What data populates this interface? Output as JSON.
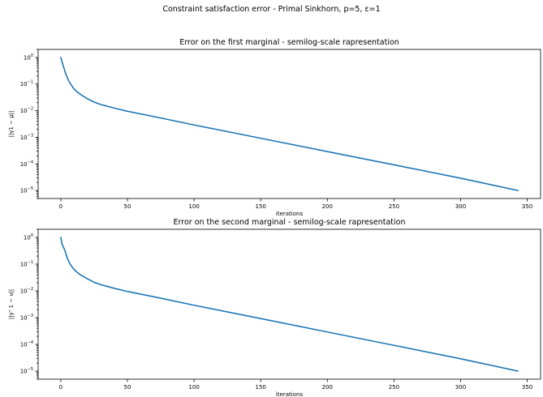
{
  "figure": {
    "suptitle": "Constraint satisfaction error - Primal Sinkhorn, p=5, ε=1"
  },
  "chart_data": [
    {
      "type": "line",
      "title": "Error on the first marginal - semilog-scale rapresentation",
      "xlabel": "iterations",
      "ylabel": "||γ1 − μ||",
      "yscale": "log",
      "xlim": [
        -17,
        360
      ],
      "ylim": [
        5e-06,
        2
      ],
      "xticks": [
        0,
        50,
        100,
        150,
        200,
        250,
        300,
        350
      ],
      "yticks": [
        1,
        0.1,
        0.01,
        0.001,
        0.0001,
        1e-05
      ],
      "yticklabels": [
        "10^0",
        "10^-1",
        "10^-2",
        "10^-3",
        "10^-4",
        "10^-5"
      ],
      "grid": false,
      "series": [
        {
          "color": "#1f77b4",
          "x": [
            0,
            2,
            4,
            6,
            8,
            10,
            12,
            15,
            20,
            25,
            30,
            40,
            50,
            75,
            100,
            150,
            200,
            250,
            300,
            343
          ],
          "y": [
            1,
            0.45,
            0.22,
            0.13,
            0.09,
            0.065,
            0.052,
            0.04,
            0.028,
            0.021,
            0.017,
            0.0125,
            0.0095,
            0.0053,
            0.0029,
            0.00092,
            0.00029,
            9.2e-05,
            2.9e-05,
            1e-05
          ]
        }
      ]
    },
    {
      "type": "line",
      "title": "Error on the second marginal - semilog-scale rapresentation",
      "xlabel": "iterations",
      "ylabel": "||γᵀ 1 − ν||",
      "yscale": "log",
      "xlim": [
        -17,
        360
      ],
      "ylim": [
        5e-06,
        2
      ],
      "xticks": [
        0,
        50,
        100,
        150,
        200,
        250,
        300,
        350
      ],
      "yticks": [
        1,
        0.1,
        0.01,
        0.001,
        0.0001,
        1e-05
      ],
      "yticklabels": [
        "10^0",
        "10^-1",
        "10^-2",
        "10^-3",
        "10^-4",
        "10^-5"
      ],
      "grid": false,
      "series": [
        {
          "color": "#1f77b4",
          "x": [
            0,
            1,
            3,
            5,
            7,
            9,
            11,
            14,
            20,
            25,
            30,
            40,
            50,
            75,
            100,
            150,
            200,
            250,
            300,
            343
          ],
          "y": [
            1,
            0.55,
            0.33,
            0.16,
            0.1,
            0.072,
            0.056,
            0.042,
            0.028,
            0.021,
            0.017,
            0.0125,
            0.0095,
            0.0053,
            0.0029,
            0.00092,
            0.00029,
            9.2e-05,
            2.9e-05,
            1e-05
          ]
        }
      ]
    }
  ]
}
